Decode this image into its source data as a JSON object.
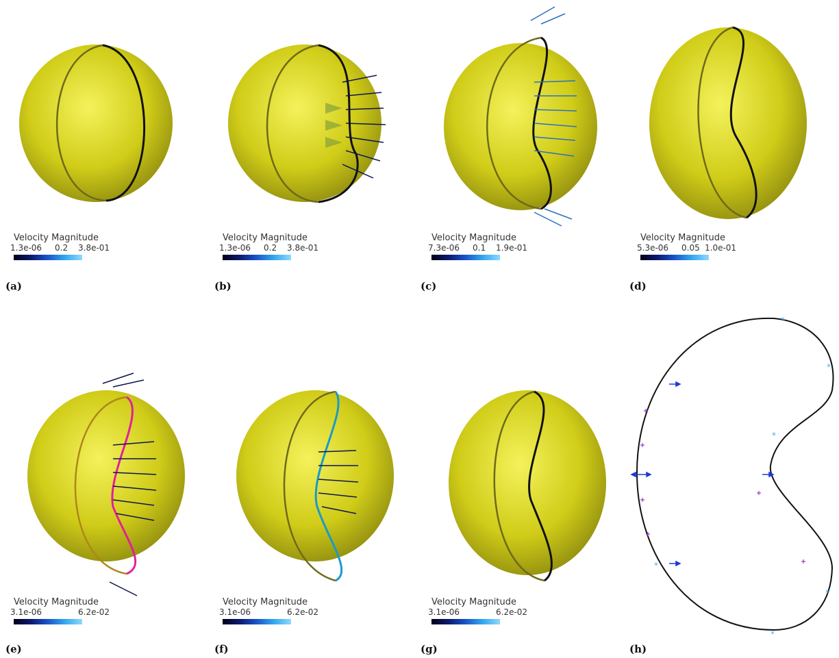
{
  "colorbar_title": "Velocity Magnitude",
  "panels": [
    {
      "label": "(a)",
      "ticks": [
        "1.3e-06",
        "0.2",
        "3.8e-01"
      ]
    },
    {
      "label": "(b)",
      "ticks": [
        "1.3e-06",
        "0.2",
        "3.8e-01"
      ]
    },
    {
      "label": "(c)",
      "ticks": [
        "7.3e-06",
        "0.1",
        "1.9e-01"
      ]
    },
    {
      "label": "(d)",
      "ticks": [
        "5.3e-06",
        "0.05",
        "1.0e-01"
      ]
    },
    {
      "label": "(e)",
      "ticks": [
        "3.1e-06",
        "6.2e-02"
      ]
    },
    {
      "label": "(f)",
      "ticks": [
        "3.1e-06",
        "6.2e-02"
      ]
    },
    {
      "label": "(g)",
      "ticks": [
        "3.1e-06",
        "6.2e-02"
      ]
    },
    {
      "label": "(h)"
    }
  ],
  "colors": {
    "surface": "#d6d21a",
    "surface_light": "#f2f05a",
    "surface_dark": "#8f8c10",
    "contour": "#111111",
    "contour_magenta": "#e0209a",
    "contour_cyan": "#1a9ac8",
    "arrow_dark": "#0c1450",
    "arrow_light": "#3aa0e0",
    "marker_plus": "#9a3ac8",
    "marker_star": "#4ab0e8"
  }
}
